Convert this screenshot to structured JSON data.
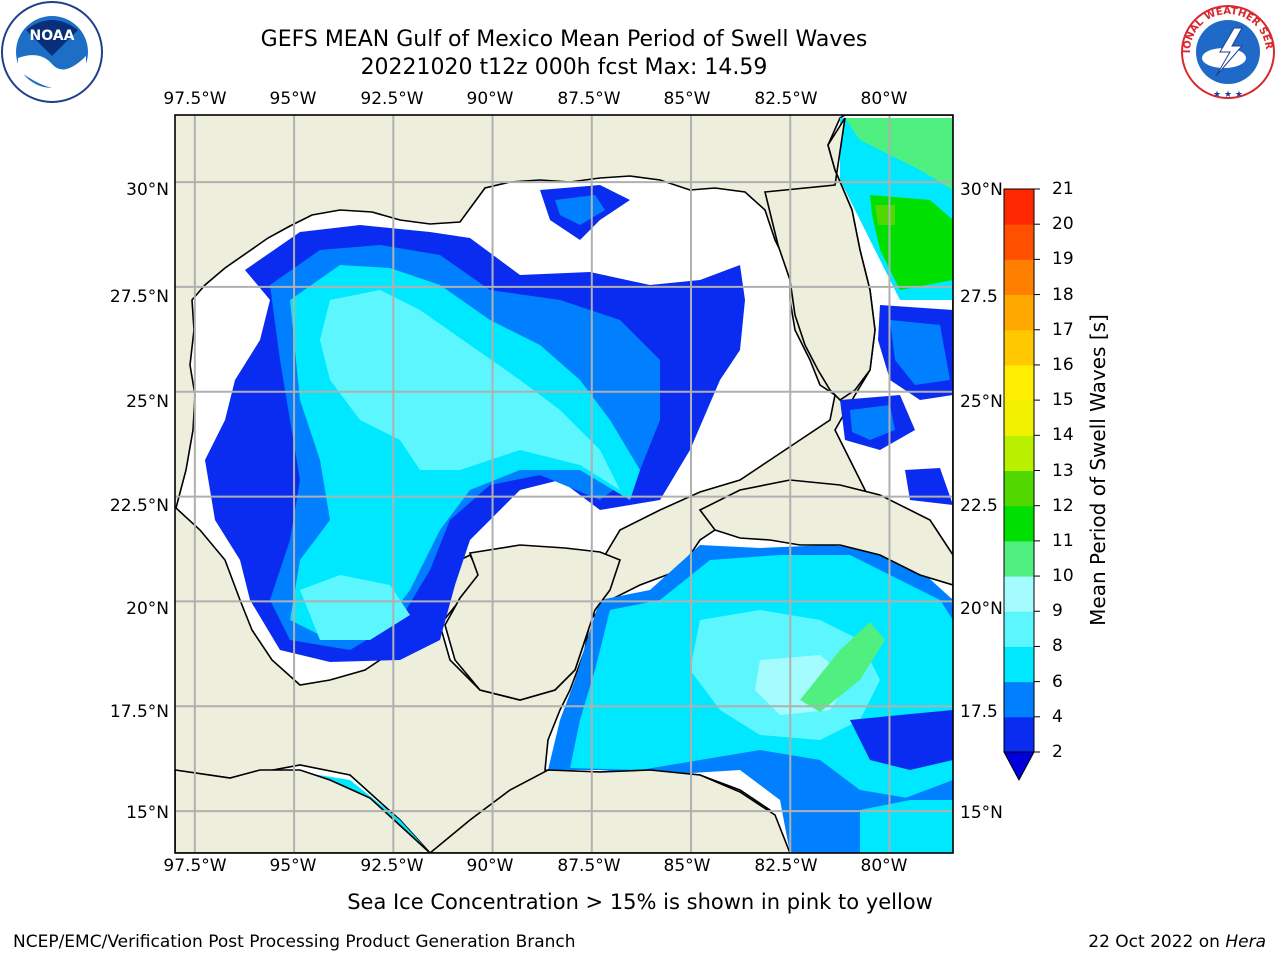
{
  "title": {
    "line1": "GEFS MEAN Gulf of Mexico Mean Period of Swell Waves",
    "line2": "20221020 t12z 000h fcst   Max: 14.59"
  },
  "logos": {
    "left": "noaa-logo",
    "right": "national-weather-service-logo",
    "left_text": "NOAA",
    "right_text": "NATIONAL WEATHER SERVICE"
  },
  "map": {
    "lon_labels": [
      "97.5°W",
      "95°W",
      "92.5°W",
      "90°W",
      "87.5°W",
      "85°W",
      "82.5°W",
      "80°W"
    ],
    "lat_labels_left": [
      "30°N",
      "27.5°N",
      "25°N",
      "22.5°N",
      "20°N",
      "17.5°N",
      "15°N"
    ],
    "lat_labels_right": [
      "30°N",
      "27.5",
      "25°N",
      "22.5",
      "20°N",
      "17.5",
      "15°N"
    ],
    "lon_range": [
      -98,
      -78.4
    ],
    "lat_range": [
      14,
      31.6
    ],
    "land_color": "#eeeedd",
    "ocean_no_data_color": "#ffffff",
    "grid_color": "#b0b0b0"
  },
  "colorbar": {
    "title": "Mean Period of Swell Waves [s]",
    "ticks": [
      "2",
      "4",
      "6",
      "8",
      "9",
      "10",
      "11",
      "12",
      "13",
      "14",
      "15",
      "16",
      "17",
      "18",
      "19",
      "20",
      "21"
    ],
    "colors": [
      "#0a2cf0",
      "#0080ff",
      "#00e8ff",
      "#5cf6ff",
      "#a4fcff",
      "#50f080",
      "#00e000",
      "#50d800",
      "#b8f000",
      "#f0f000",
      "#ffee00",
      "#ffc800",
      "#ffa800",
      "#ff8000",
      "#ff5000",
      "#ff2800",
      "#ff0000"
    ],
    "under_color": "#0000dd"
  },
  "note": "Sea Ice Concentration > 15% is shown in pink to yellow",
  "footer": {
    "left": "NCEP/EMC/Verification Post Processing Product Generation Branch",
    "right_date": "22 Oct 2022 on ",
    "right_host": "Hera"
  }
}
